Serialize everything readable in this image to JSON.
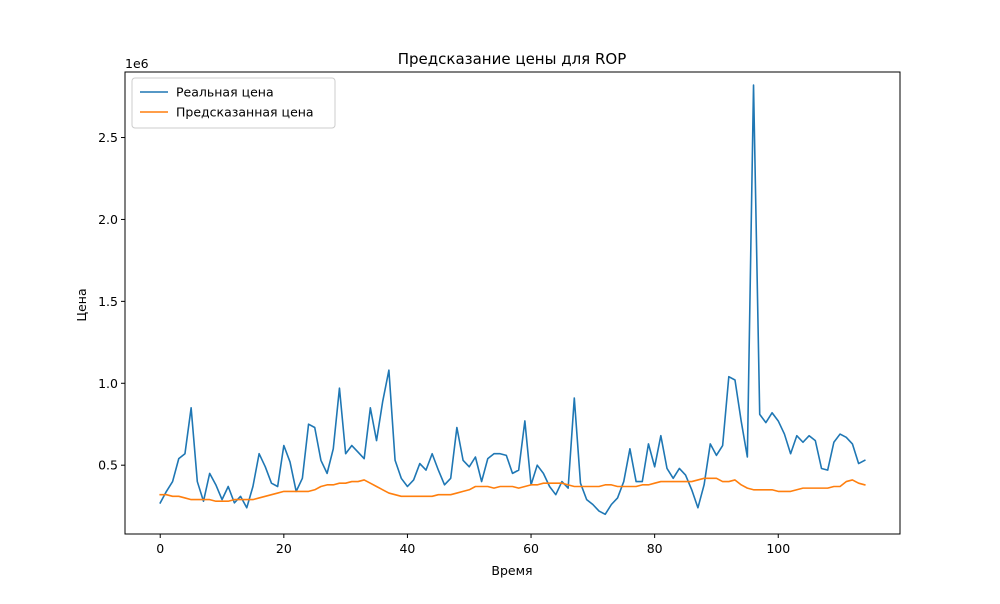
{
  "chart_data": {
    "type": "line",
    "title": "Предсказание цены для ROP",
    "xlabel": "Время",
    "ylabel": "Цена",
    "y_offset_text": "1e6",
    "xlim": [
      -5.7,
      119.7
    ],
    "ylim": [
      0.08,
      2.9
    ],
    "x_ticks": [
      0,
      20,
      40,
      60,
      80,
      100
    ],
    "x_tick_labels": [
      "0",
      "20",
      "40",
      "60",
      "80",
      "100"
    ],
    "y_ticks": [
      0.5,
      1.0,
      1.5,
      2.0,
      2.5
    ],
    "y_tick_labels": [
      "0.5",
      "1.0",
      "1.5",
      "2.0",
      "2.5"
    ],
    "legend_position": "top-left",
    "grid": false,
    "x": [
      0,
      1,
      2,
      3,
      4,
      5,
      6,
      7,
      8,
      9,
      10,
      11,
      12,
      13,
      14,
      15,
      16,
      17,
      18,
      19,
      20,
      21,
      22,
      23,
      24,
      25,
      26,
      27,
      28,
      29,
      30,
      31,
      32,
      33,
      34,
      35,
      36,
      37,
      38,
      39,
      40,
      41,
      42,
      43,
      44,
      45,
      46,
      47,
      48,
      49,
      50,
      51,
      52,
      53,
      54,
      55,
      56,
      57,
      58,
      59,
      60,
      61,
      62,
      63,
      64,
      65,
      66,
      67,
      68,
      69,
      70,
      71,
      72,
      73,
      74,
      75,
      76,
      77,
      78,
      79,
      80,
      81,
      82,
      83,
      84,
      85,
      86,
      87,
      88,
      89,
      90,
      91,
      92,
      93,
      94,
      95,
      96,
      97,
      98,
      99,
      100,
      101,
      102,
      103,
      104,
      105,
      106,
      107,
      108,
      109,
      110,
      111,
      112,
      113,
      114
    ],
    "series": [
      {
        "name": "Реальная цена",
        "color": "#1f77b4",
        "values": [
          0.27,
          0.34,
          0.4,
          0.54,
          0.57,
          0.85,
          0.4,
          0.28,
          0.45,
          0.38,
          0.29,
          0.37,
          0.27,
          0.31,
          0.24,
          0.37,
          0.57,
          0.49,
          0.39,
          0.37,
          0.62,
          0.52,
          0.34,
          0.42,
          0.75,
          0.73,
          0.53,
          0.45,
          0.6,
          0.97,
          0.57,
          0.62,
          0.58,
          0.54,
          0.85,
          0.65,
          0.89,
          1.08,
          0.53,
          0.42,
          0.37,
          0.41,
          0.51,
          0.47,
          0.57,
          0.47,
          0.38,
          0.42,
          0.73,
          0.53,
          0.49,
          0.55,
          0.4,
          0.54,
          0.57,
          0.57,
          0.56,
          0.45,
          0.47,
          0.77,
          0.38,
          0.5,
          0.45,
          0.37,
          0.32,
          0.4,
          0.36,
          0.91,
          0.39,
          0.29,
          0.26,
          0.22,
          0.2,
          0.26,
          0.3,
          0.4,
          0.6,
          0.4,
          0.4,
          0.63,
          0.49,
          0.68,
          0.48,
          0.42,
          0.48,
          0.44,
          0.35,
          0.24,
          0.38,
          0.63,
          0.56,
          0.62,
          1.04,
          1.02,
          0.77,
          0.55,
          2.82,
          0.81,
          0.76,
          0.82,
          0.77,
          0.69,
          0.57,
          0.68,
          0.64,
          0.68,
          0.65,
          0.48,
          0.47,
          0.64,
          0.69,
          0.67,
          0.63,
          0.51,
          0.53
        ]
      },
      {
        "name": "Предсказанная цена",
        "color": "#ff7f0e",
        "values": [
          0.32,
          0.32,
          0.31,
          0.31,
          0.3,
          0.29,
          0.29,
          0.29,
          0.29,
          0.28,
          0.28,
          0.28,
          0.29,
          0.29,
          0.29,
          0.29,
          0.3,
          0.31,
          0.32,
          0.33,
          0.34,
          0.34,
          0.34,
          0.34,
          0.34,
          0.35,
          0.37,
          0.38,
          0.38,
          0.39,
          0.39,
          0.4,
          0.4,
          0.41,
          0.39,
          0.37,
          0.35,
          0.33,
          0.32,
          0.31,
          0.31,
          0.31,
          0.31,
          0.31,
          0.31,
          0.32,
          0.32,
          0.32,
          0.33,
          0.34,
          0.35,
          0.37,
          0.37,
          0.37,
          0.36,
          0.37,
          0.37,
          0.37,
          0.36,
          0.37,
          0.38,
          0.38,
          0.39,
          0.39,
          0.39,
          0.39,
          0.38,
          0.37,
          0.37,
          0.37,
          0.37,
          0.37,
          0.38,
          0.38,
          0.37,
          0.37,
          0.37,
          0.37,
          0.38,
          0.38,
          0.39,
          0.4,
          0.4,
          0.4,
          0.4,
          0.4,
          0.4,
          0.41,
          0.42,
          0.42,
          0.42,
          0.4,
          0.4,
          0.41,
          0.38,
          0.36,
          0.35,
          0.35,
          0.35,
          0.35,
          0.34,
          0.34,
          0.34,
          0.35,
          0.36,
          0.36,
          0.36,
          0.36,
          0.36,
          0.37,
          0.37,
          0.4,
          0.41,
          0.39,
          0.38
        ]
      }
    ]
  }
}
